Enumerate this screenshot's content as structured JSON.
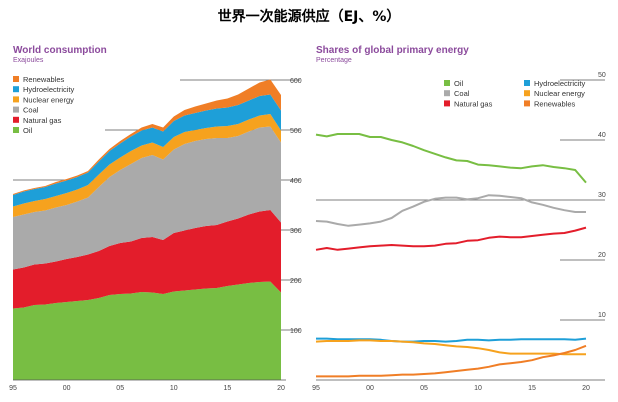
{
  "page": {
    "title": "世界一次能源供应（EJ、%）"
  },
  "chart_data": [
    {
      "type": "area",
      "stacked": true,
      "title": "World consumption",
      "subtitle": "Exajoules",
      "x": [
        1995,
        1996,
        1997,
        1998,
        1999,
        2000,
        2001,
        2002,
        2003,
        2004,
        2005,
        2006,
        2007,
        2008,
        2009,
        2010,
        2011,
        2012,
        2013,
        2014,
        2015,
        2016,
        2017,
        2018,
        2019,
        2020
      ],
      "xticks": [
        1995,
        2000,
        2005,
        2010,
        2015,
        2020
      ],
      "xtick_labels": [
        "95",
        "00",
        "05",
        "10",
        "15",
        "20"
      ],
      "ylim": [
        0,
        600
      ],
      "yticks": [
        100,
        200,
        300,
        400,
        500,
        600
      ],
      "ytick_labels": [
        "100",
        "200",
        "300",
        "400",
        "500",
        "600"
      ],
      "legend_position": "top-left",
      "series": [
        {
          "name": "Oil",
          "color": "#78be43",
          "values": [
            143,
            145,
            150,
            151,
            154,
            156,
            158,
            160,
            164,
            170,
            172,
            173,
            176,
            175,
            172,
            177,
            179,
            181,
            183,
            184,
            188,
            191,
            194,
            196,
            197,
            175
          ]
        },
        {
          "name": "Natural gas",
          "color": "#e31d2b",
          "values": [
            78,
            80,
            81,
            82,
            83,
            86,
            88,
            91,
            94,
            98,
            102,
            104,
            108,
            111,
            108,
            117,
            120,
            123,
            125,
            126,
            129,
            132,
            137,
            141,
            143,
            140
          ]
        },
        {
          "name": "Coal",
          "color": "#aaaaaa",
          "values": [
            105,
            106,
            105,
            106,
            108,
            108,
            111,
            114,
            128,
            138,
            146,
            155,
            160,
            164,
            161,
            167,
            173,
            174,
            174,
            174,
            167,
            165,
            166,
            168,
            167,
            160
          ]
        },
        {
          "name": "Nuclear energy",
          "color": "#f6a21e",
          "values": [
            21,
            22,
            22,
            23,
            23,
            24,
            24,
            25,
            25,
            25,
            25,
            26,
            25,
            25,
            25,
            25,
            24,
            22,
            22,
            23,
            24,
            24,
            24,
            24,
            25,
            24
          ]
        },
        {
          "name": "Hydroelectricity",
          "color": "#1e9fd8",
          "values": [
            23,
            24,
            24,
            24,
            25,
            25,
            25,
            25,
            26,
            27,
            28,
            29,
            30,
            30,
            31,
            32,
            33,
            34,
            35,
            36,
            37,
            38,
            38,
            39,
            39,
            40
          ]
        },
        {
          "name": "Renewables",
          "color": "#f07e26",
          "values": [
            2,
            2,
            2,
            2,
            3,
            3,
            3,
            3,
            4,
            4,
            5,
            5,
            6,
            7,
            8,
            9,
            11,
            13,
            14,
            16,
            18,
            21,
            24,
            27,
            30,
            31
          ]
        }
      ]
    },
    {
      "type": "line",
      "title": "Shares of global primary energy",
      "subtitle": "Percentage",
      "x": [
        1995,
        1996,
        1997,
        1998,
        1999,
        2000,
        2001,
        2002,
        2003,
        2004,
        2005,
        2006,
        2007,
        2008,
        2009,
        2010,
        2011,
        2012,
        2013,
        2014,
        2015,
        2016,
        2017,
        2018,
        2019,
        2020
      ],
      "xticks": [
        1995,
        2000,
        2005,
        2010,
        2015,
        2020
      ],
      "xtick_labels": [
        "95",
        "00",
        "05",
        "10",
        "15",
        "20"
      ],
      "ylim": [
        0,
        50
      ],
      "yticks": [
        10,
        20,
        30,
        40,
        50
      ],
      "ytick_labels": [
        "10",
        "20",
        "30",
        "40",
        "50"
      ],
      "legend_position": "top-left",
      "series": [
        {
          "name": "Oil",
          "color": "#78be43",
          "values": [
            40.9,
            40.6,
            41.0,
            41.0,
            41.0,
            40.5,
            40.5,
            40.0,
            39.6,
            39.0,
            38.3,
            37.7,
            37.1,
            36.6,
            36.5,
            35.9,
            35.8,
            35.6,
            35.4,
            35.3,
            35.6,
            35.8,
            35.5,
            35.3,
            35.0,
            32.9
          ]
        },
        {
          "name": "Coal",
          "color": "#aaaaaa",
          "values": [
            26.5,
            26.4,
            26.0,
            25.7,
            25.9,
            26.1,
            26.4,
            27.0,
            28.2,
            28.9,
            29.7,
            30.2,
            30.4,
            30.4,
            30.1,
            30.3,
            30.8,
            30.7,
            30.5,
            30.3,
            29.6,
            29.2,
            28.7,
            28.3,
            28.0,
            28.0
          ]
        },
        {
          "name": "Natural gas",
          "color": "#e31d2b",
          "values": [
            21.7,
            22.0,
            21.7,
            21.9,
            22.1,
            22.3,
            22.4,
            22.5,
            22.4,
            22.3,
            22.3,
            22.4,
            22.7,
            22.8,
            23.2,
            23.3,
            23.7,
            23.9,
            23.8,
            23.8,
            24.0,
            24.2,
            24.4,
            24.5,
            24.9,
            25.4
          ]
        },
        {
          "name": "Hydroelectricity",
          "color": "#1e9fd8",
          "values": [
            6.9,
            6.9,
            6.8,
            6.8,
            6.8,
            6.8,
            6.7,
            6.5,
            6.4,
            6.4,
            6.5,
            6.5,
            6.4,
            6.5,
            6.7,
            6.7,
            6.6,
            6.7,
            6.7,
            6.8,
            6.8,
            6.8,
            6.8,
            6.8,
            6.7,
            6.9
          ]
        },
        {
          "name": "Nuclear energy",
          "color": "#f6a21e",
          "values": [
            6.4,
            6.5,
            6.5,
            6.5,
            6.6,
            6.6,
            6.5,
            6.5,
            6.4,
            6.3,
            6.1,
            6.0,
            5.8,
            5.6,
            5.5,
            5.3,
            5.0,
            4.6,
            4.4,
            4.4,
            4.4,
            4.4,
            4.4,
            4.3,
            4.3,
            4.3
          ]
        },
        {
          "name": "Renewables",
          "color": "#f07e26",
          "values": [
            0.6,
            0.6,
            0.6,
            0.6,
            0.7,
            0.7,
            0.7,
            0.8,
            0.9,
            0.9,
            1.0,
            1.1,
            1.3,
            1.5,
            1.7,
            1.9,
            2.2,
            2.6,
            2.8,
            3.0,
            3.3,
            3.8,
            4.1,
            4.5,
            5.0,
            5.7
          ]
        }
      ]
    }
  ]
}
